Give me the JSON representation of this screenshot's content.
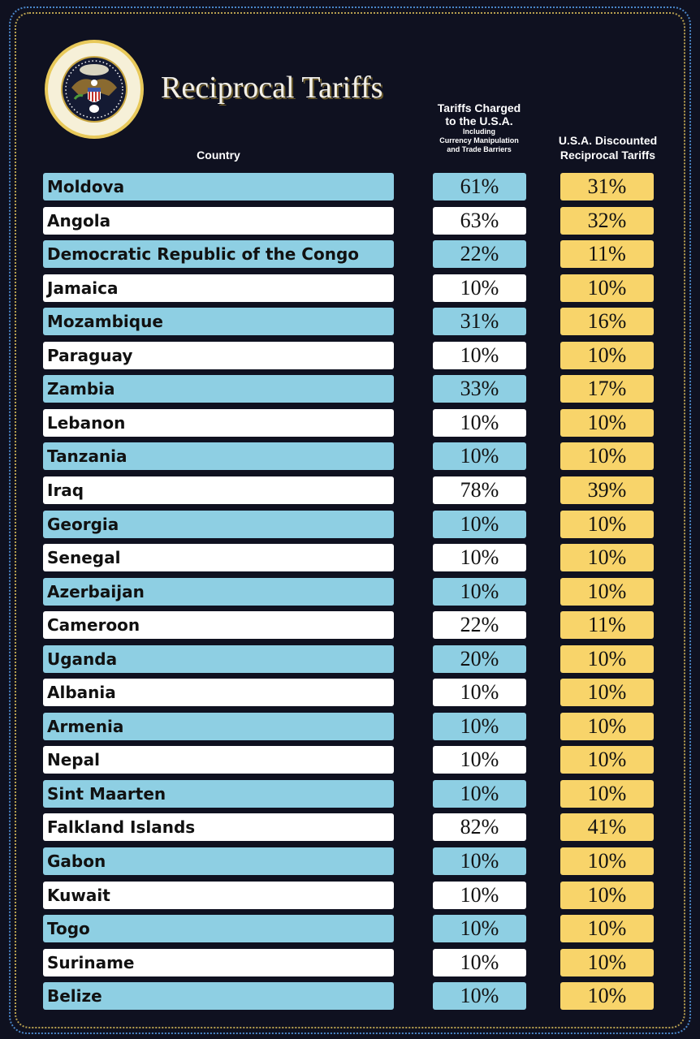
{
  "title": "Reciprocal Tariffs",
  "seal_text": "SEAL OF THE PRESIDENT OF THE UNITED STATES",
  "colors": {
    "background": "#0f1120",
    "row_blue": "#8ecfe3",
    "row_white": "#ffffff",
    "discount_yellow": "#f8d46a"
  },
  "headers": {
    "country": "Country",
    "charged_main1": "Tariffs Charged",
    "charged_main2": "to the U.S.A.",
    "charged_sub1": "Including",
    "charged_sub2": "Currency Manipulation",
    "charged_sub3": "and Trade Barriers",
    "discounted1": "U.S.A. Discounted",
    "discounted2": "Reciprocal Tariffs"
  },
  "chart_data": {
    "type": "table",
    "title": "Reciprocal Tariffs",
    "columns": [
      "Country",
      "Tariffs Charged to the U.S.A. Including Currency Manipulation and Trade Barriers",
      "U.S.A. Discounted Reciprocal Tariffs"
    ],
    "rows": [
      {
        "country": "Moldova",
        "charged": "61%",
        "discounted": "31%"
      },
      {
        "country": "Angola",
        "charged": "63%",
        "discounted": "32%"
      },
      {
        "country": "Democratic Republic of the Congo",
        "charged": "22%",
        "discounted": "11%"
      },
      {
        "country": "Jamaica",
        "charged": "10%",
        "discounted": "10%"
      },
      {
        "country": "Mozambique",
        "charged": "31%",
        "discounted": "16%"
      },
      {
        "country": "Paraguay",
        "charged": "10%",
        "discounted": "10%"
      },
      {
        "country": "Zambia",
        "charged": "33%",
        "discounted": "17%"
      },
      {
        "country": "Lebanon",
        "charged": "10%",
        "discounted": "10%"
      },
      {
        "country": "Tanzania",
        "charged": "10%",
        "discounted": "10%"
      },
      {
        "country": "Iraq",
        "charged": "78%",
        "discounted": "39%"
      },
      {
        "country": "Georgia",
        "charged": "10%",
        "discounted": "10%"
      },
      {
        "country": "Senegal",
        "charged": "10%",
        "discounted": "10%"
      },
      {
        "country": "Azerbaijan",
        "charged": "10%",
        "discounted": "10%"
      },
      {
        "country": "Cameroon",
        "charged": "22%",
        "discounted": "11%"
      },
      {
        "country": "Uganda",
        "charged": "20%",
        "discounted": "10%"
      },
      {
        "country": "Albania",
        "charged": "10%",
        "discounted": "10%"
      },
      {
        "country": "Armenia",
        "charged": "10%",
        "discounted": "10%"
      },
      {
        "country": "Nepal",
        "charged": "10%",
        "discounted": "10%"
      },
      {
        "country": "Sint Maarten",
        "charged": "10%",
        "discounted": "10%"
      },
      {
        "country": "Falkland Islands",
        "charged": "82%",
        "discounted": "41%"
      },
      {
        "country": "Gabon",
        "charged": "10%",
        "discounted": "10%"
      },
      {
        "country": "Kuwait",
        "charged": "10%",
        "discounted": "10%"
      },
      {
        "country": "Togo",
        "charged": "10%",
        "discounted": "10%"
      },
      {
        "country": "Suriname",
        "charged": "10%",
        "discounted": "10%"
      },
      {
        "country": "Belize",
        "charged": "10%",
        "discounted": "10%"
      }
    ]
  }
}
